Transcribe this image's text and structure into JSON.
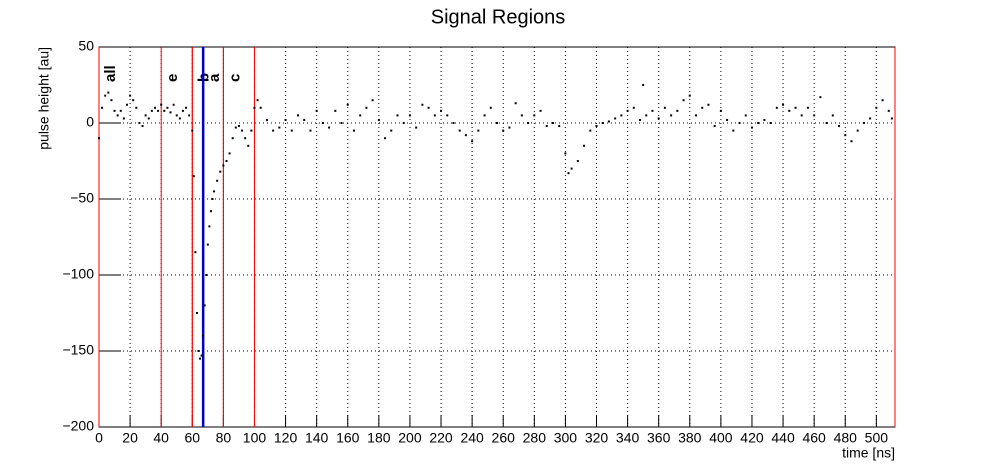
{
  "chart_data": {
    "type": "scatter",
    "title": "Signal Regions",
    "x_label": "time [ns]",
    "y_label": "pulse height [au]",
    "xlim": [
      0,
      512
    ],
    "ylim": [
      -200,
      50
    ],
    "xticks": [
      0,
      20,
      40,
      60,
      80,
      100,
      120,
      140,
      160,
      180,
      200,
      220,
      240,
      260,
      280,
      300,
      320,
      340,
      360,
      380,
      400,
      420,
      440,
      460,
      480,
      500
    ],
    "yticks": [
      {
        "value": -200,
        "label": "−200"
      },
      {
        "value": -150,
        "label": "−150"
      },
      {
        "value": -100,
        "label": "−100"
      },
      {
        "value": -50,
        "label": "−50"
      },
      0,
      50
    ],
    "grid": true,
    "color": "#000000",
    "regions": [
      {
        "name": "all",
        "start": 0,
        "end": 512,
        "color": "#ff0000"
      },
      {
        "name": "e",
        "start": 40,
        "end": 60,
        "color": "#ff0000"
      },
      {
        "name": "b",
        "start": 60,
        "end": 80,
        "color": "#ff0000"
      },
      {
        "name": "a",
        "start": 67,
        "end": 67,
        "color": "#0000cc"
      },
      {
        "name": "c",
        "start": 80,
        "end": 100,
        "color": "#ff0000"
      }
    ],
    "x": [
      0,
      2,
      4,
      6,
      8,
      10,
      12,
      14,
      16,
      18,
      20,
      22,
      24,
      26,
      28,
      30,
      32,
      34,
      36,
      38,
      40,
      42,
      44,
      46,
      48,
      50,
      52,
      54,
      56,
      58,
      60,
      61,
      62,
      63,
      64,
      65,
      66,
      67,
      68,
      69,
      70,
      71,
      72,
      73,
      74,
      76,
      78,
      80,
      82,
      84,
      86,
      88,
      90,
      92,
      94,
      96,
      98,
      100,
      102,
      104,
      108,
      112,
      116,
      120,
      124,
      128,
      132,
      136,
      140,
      144,
      148,
      152,
      156,
      160,
      164,
      168,
      172,
      176,
      180,
      184,
      188,
      192,
      196,
      200,
      204,
      208,
      212,
      216,
      220,
      224,
      228,
      232,
      236,
      240,
      244,
      248,
      252,
      256,
      260,
      264,
      268,
      272,
      276,
      280,
      284,
      288,
      292,
      296,
      300,
      302,
      304,
      308,
      312,
      316,
      320,
      324,
      328,
      332,
      336,
      340,
      344,
      348,
      350,
      352,
      356,
      360,
      364,
      368,
      372,
      376,
      380,
      384,
      388,
      392,
      396,
      400,
      404,
      408,
      412,
      416,
      420,
      424,
      428,
      432,
      436,
      440,
      444,
      448,
      452,
      456,
      460,
      464,
      468,
      472,
      476,
      480,
      484,
      488,
      492,
      496,
      500,
      504,
      508,
      510
    ],
    "values": [
      -10,
      10,
      18,
      20,
      15,
      8,
      5,
      8,
      3,
      12,
      18,
      15,
      10,
      0,
      -2,
      5,
      3,
      8,
      10,
      8,
      12,
      8,
      10,
      7,
      12,
      5,
      3,
      8,
      10,
      5,
      -5,
      -35,
      -85,
      -125,
      -150,
      -155,
      -153,
      -140,
      -120,
      -100,
      -80,
      -68,
      -58,
      -50,
      -45,
      -38,
      -32,
      -28,
      -25,
      -20,
      -10,
      -3,
      -2,
      -5,
      -10,
      -15,
      -5,
      10,
      15,
      10,
      2,
      -5,
      -3,
      2,
      -5,
      5,
      2,
      -5,
      8,
      0,
      -3,
      8,
      0,
      12,
      -5,
      5,
      10,
      15,
      2,
      -10,
      -5,
      5,
      0,
      5,
      -3,
      12,
      10,
      5,
      8,
      5,
      0,
      -5,
      -8,
      -12,
      -5,
      5,
      10,
      0,
      -5,
      -3,
      13,
      5,
      0,
      5,
      8,
      -2,
      0,
      -2,
      -20,
      -33,
      -30,
      -25,
      -15,
      -5,
      -2,
      0,
      1,
      3,
      5,
      8,
      10,
      2,
      25,
      5,
      8,
      3,
      10,
      5,
      8,
      15,
      18,
      5,
      10,
      12,
      -2,
      8,
      2,
      -5,
      0,
      5,
      -3,
      0,
      2,
      0,
      10,
      12,
      8,
      10,
      5,
      10,
      5,
      17,
      0,
      5,
      -2,
      -8,
      -12,
      -5,
      0,
      3,
      10,
      15,
      8,
      3
    ]
  }
}
